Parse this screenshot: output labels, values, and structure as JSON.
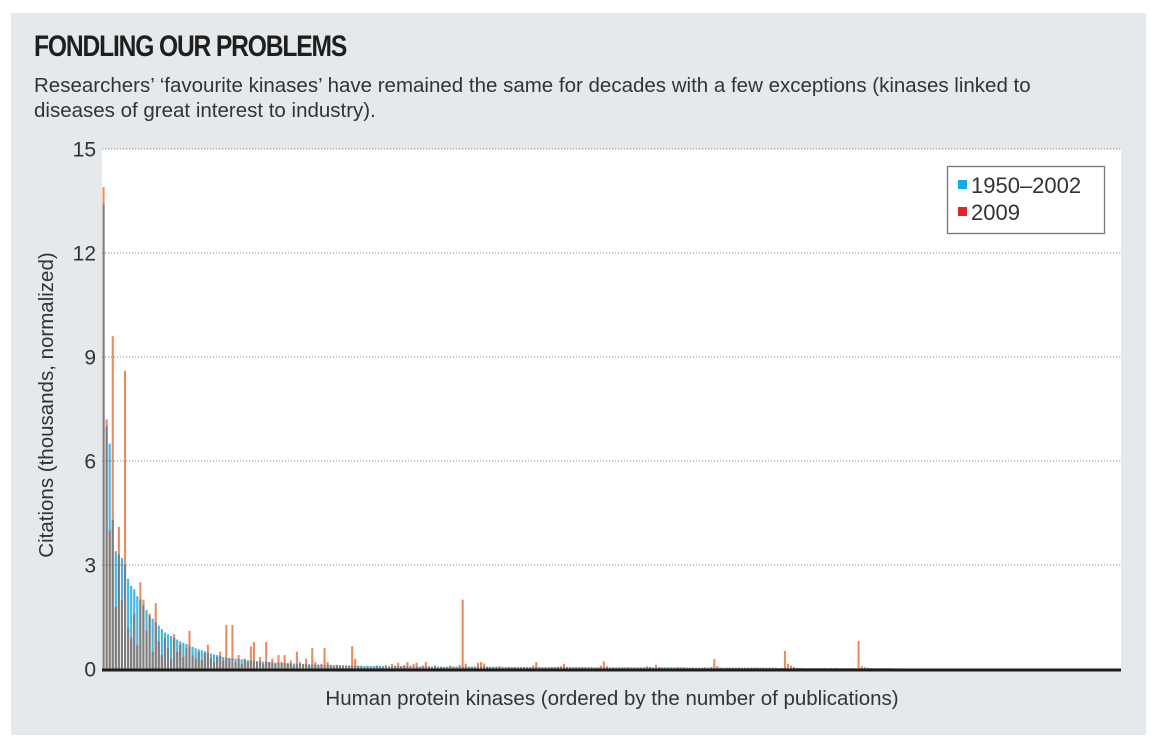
{
  "title": "FONDLING OUR PROBLEMS",
  "subtitle": "Researchers’ ‘favourite kinases’ have remained the same for decades with a few exceptions (kinases linked to diseases of great interest to industry).",
  "colors": {
    "panel_background": "#e6e9eb",
    "plot_background": "#ffffff",
    "series_1950_2002": "#3fb6e6",
    "series_2009": "#ef8a5f",
    "overlap": "#7e7f81",
    "legend_swatch_1950_2002": "#14a9e8",
    "legend_swatch_2009": "#e8202a",
    "axis": "#1e1e1e",
    "grid": "#8a8a8a"
  },
  "chart_data": {
    "type": "bar",
    "title": "FONDLING OUR PROBLEMS",
    "xlabel": "Human protein kinases (ordered by the number of publications)",
    "ylabel": "Citations (thousands, normalized)",
    "ylim": [
      0,
      15
    ],
    "yticks": [
      0,
      3,
      6,
      9,
      12,
      15
    ],
    "ytick_labels": [
      "0",
      "3",
      "6",
      "9",
      "12",
      "15"
    ],
    "grid": "horizontal-dotted",
    "legend_position": "top-right",
    "x_slots": 332,
    "series": [
      {
        "name": "1950–2002",
        "color": "#3fb6e6",
        "values": [
          13.4,
          7.0,
          6.5,
          4.3,
          3.4,
          3.3,
          3.2,
          3.0,
          2.6,
          2.4,
          2.3,
          2.1,
          2.0,
          1.85,
          1.7,
          1.55,
          1.45,
          1.35,
          1.25,
          1.15,
          1.05,
          1.0,
          0.95,
          0.9,
          0.85,
          0.8,
          0.76,
          0.72,
          0.68,
          0.64,
          0.6,
          0.57,
          0.54,
          0.51,
          0.48,
          0.45,
          0.42,
          0.4,
          0.38,
          0.35,
          0.33,
          0.32,
          0.31,
          0.3,
          0.29,
          0.28,
          0.27,
          0.26,
          0.25,
          0.24,
          0.23,
          0.22,
          0.21,
          0.21,
          0.2,
          0.19,
          0.19,
          0.18,
          0.18,
          0.17,
          0.17,
          0.16,
          0.16,
          0.15,
          0.15,
          0.14,
          0.14,
          0.14,
          0.13,
          0.13,
          0.13,
          0.12,
          0.12,
          0.12,
          0.12,
          0.11,
          0.11,
          0.11,
          0.11,
          0.1,
          0.1,
          0.1,
          0.1,
          0.1,
          0.1,
          0.09,
          0.09,
          0.09,
          0.09,
          0.09,
          0.09,
          0.09,
          0.08,
          0.08,
          0.08,
          0.08,
          0.08,
          0.08,
          0.08,
          0.08,
          0.07,
          0.07,
          0.07,
          0.07,
          0.07,
          0.07,
          0.07,
          0.07,
          0.07,
          0.07,
          0.07,
          0.07,
          0.07,
          0.07,
          0.07,
          0.07,
          0.07,
          0.07,
          0.07,
          0.07,
          0.07,
          0.07,
          0.07,
          0.07,
          0.07,
          0.07,
          0.07,
          0.07,
          0.07,
          0.07,
          0.06,
          0.06,
          0.06,
          0.06,
          0.06,
          0.06,
          0.06,
          0.06,
          0.06,
          0.06,
          0.06,
          0.06,
          0.06,
          0.06,
          0.06,
          0.06,
          0.06,
          0.06,
          0.06,
          0.06,
          0.06,
          0.06,
          0.06,
          0.06,
          0.06,
          0.06,
          0.06,
          0.06,
          0.06,
          0.06,
          0.05,
          0.05,
          0.05,
          0.05,
          0.05,
          0.05,
          0.05,
          0.05,
          0.05,
          0.05,
          0.05,
          0.05,
          0.05,
          0.05,
          0.05,
          0.05,
          0.05,
          0.05,
          0.05,
          0.05,
          0.05,
          0.05,
          0.05,
          0.05,
          0.05,
          0.05,
          0.05,
          0.05,
          0.05,
          0.05,
          0.04,
          0.04,
          0.04,
          0.04,
          0.04,
          0.04,
          0.04,
          0.04,
          0.04,
          0.04,
          0.04,
          0.04,
          0.04,
          0.04,
          0.04,
          0.04,
          0.04,
          0.04,
          0.04,
          0.04,
          0.04,
          0.04,
          0.04,
          0.04,
          0.04,
          0.04,
          0.04,
          0.04,
          0.04,
          0.04,
          0.03,
          0.03,
          0.03,
          0.03,
          0.03,
          0.03,
          0.03,
          0.03,
          0.03,
          0.03,
          0.03,
          0.03,
          0.03,
          0.03,
          0.03,
          0.03,
          0.03,
          0.03,
          0.03,
          0.03,
          0.02,
          0.02,
          0.02,
          0.02,
          0.02,
          0.02,
          0.02,
          0.02,
          0.02,
          0.02,
          0.02,
          0.02,
          0.02,
          0.02,
          0.02,
          0.02,
          0.02,
          0.02,
          0.02,
          0.02
        ]
      },
      {
        "name": "2009",
        "color": "#ef8a5f",
        "values": [
          13.9,
          7.2,
          4.0,
          9.6,
          1.8,
          4.1,
          2.0,
          8.6,
          1.2,
          0.9,
          1.6,
          0.7,
          2.5,
          2.0,
          1.1,
          1.6,
          0.5,
          1.9,
          0.8,
          0.4,
          0.9,
          0.6,
          0.3,
          1.0,
          0.5,
          0.7,
          0.35,
          0.6,
          1.1,
          0.4,
          0.3,
          0.5,
          0.25,
          0.45,
          0.7,
          0.3,
          0.2,
          0.35,
          0.5,
          0.25,
          1.27,
          0.3,
          1.27,
          0.2,
          0.4,
          0.15,
          0.3,
          0.2,
          0.65,
          0.78,
          0.2,
          0.35,
          0.15,
          0.78,
          0.2,
          0.3,
          0.15,
          0.4,
          0.2,
          0.4,
          0.15,
          0.25,
          0.1,
          0.5,
          0.2,
          0.15,
          0.3,
          0.1,
          0.6,
          0.2,
          0.1,
          0.15,
          0.6,
          0.2,
          0.1,
          0.08,
          0.12,
          0.1,
          0.08,
          0.1,
          0.1,
          0.66,
          0.3,
          0.08,
          0.06,
          0.05,
          0.08,
          0.06,
          0.05,
          0.1,
          0.06,
          0.05,
          0.12,
          0.06,
          0.15,
          0.1,
          0.18,
          0.08,
          0.12,
          0.2,
          0.1,
          0.15,
          0.18,
          0.06,
          0.1,
          0.2,
          0.08,
          0.05,
          0.1,
          0.05,
          0.06,
          0.04,
          0.05,
          0.1,
          0.06,
          0.05,
          0.12,
          2.0,
          0.15,
          0.05,
          0.05,
          0.06,
          0.18,
          0.2,
          0.16,
          0.06,
          0.05,
          0.04,
          0.05,
          0.08,
          0.04,
          0.03,
          0.06,
          0.04,
          0.05,
          0.03,
          0.04,
          0.05,
          0.03,
          0.04,
          0.1,
          0.2,
          0.05,
          0.03,
          0.04,
          0.03,
          0.05,
          0.04,
          0.06,
          0.08,
          0.15,
          0.05,
          0.04,
          0.03,
          0.04,
          0.03,
          0.05,
          0.04,
          0.03,
          0.03,
          0.03,
          0.04,
          0.1,
          0.22,
          0.08,
          0.03,
          0.04,
          0.03,
          0.03,
          0.04,
          0.03,
          0.05,
          0.03,
          0.03,
          0.04,
          0.03,
          0.03,
          0.08,
          0.06,
          0.03,
          0.12,
          0.05,
          0.03,
          0.03,
          0.04,
          0.03,
          0.03,
          0.05,
          0.03,
          0.04,
          0.03,
          0.03,
          0.04,
          0.03,
          0.03,
          0.03,
          0.04,
          0.03,
          0.06,
          0.29,
          0.08,
          0.04,
          0.03,
          0.03,
          0.04,
          0.03,
          0.03,
          0.03,
          0.03,
          0.03,
          0.03,
          0.03,
          0.03,
          0.03,
          0.03,
          0.03,
          0.02,
          0.03,
          0.02,
          0.03,
          0.02,
          0.03,
          0.52,
          0.15,
          0.1,
          0.06,
          0.03,
          0.03,
          0.02,
          0.02,
          0.02,
          0.02,
          0.02,
          0.02,
          0.02,
          0.02,
          0.02,
          0.02,
          0.02,
          0.02,
          0.02,
          0.02,
          0.02,
          0.02,
          0.02,
          0.02,
          0.81,
          0.08,
          0.06,
          0.04,
          0.03,
          0.02,
          0.02,
          0.02,
          0.02,
          0.02,
          0.02,
          0.02,
          0.01,
          0.01
        ]
      }
    ]
  }
}
